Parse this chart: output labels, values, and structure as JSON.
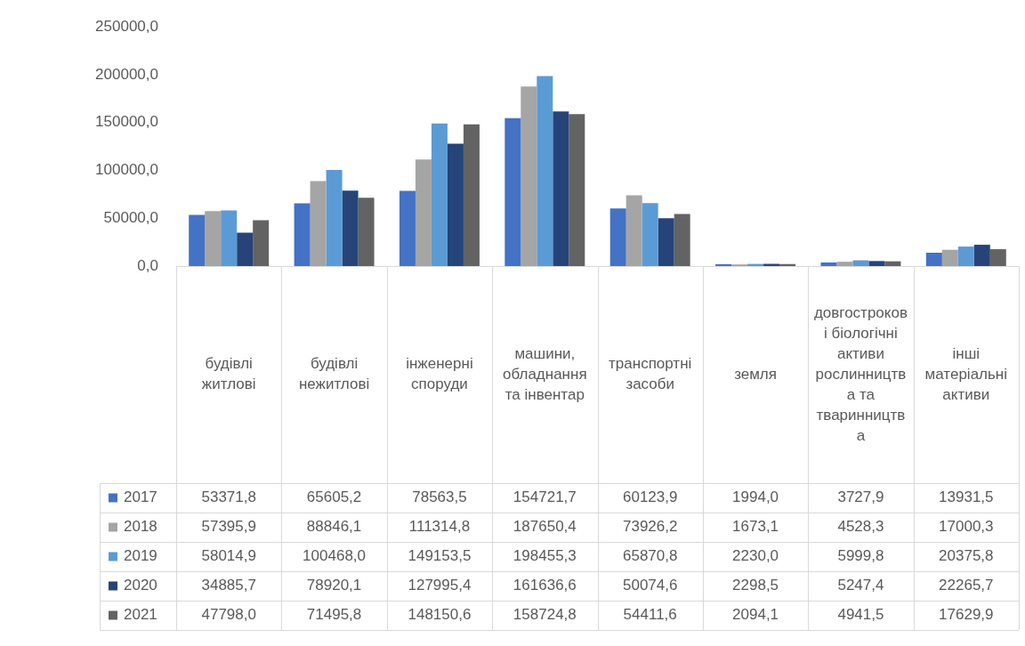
{
  "chart_data": {
    "type": "bar",
    "categories": [
      "будівлі житлові",
      "будівлі нежитлові",
      "інженерні споруди",
      "машини, обладнання та інвентар",
      "транспортні засоби",
      "земля",
      "довгострокові біологічні активи рослинництва та тваринництва",
      "інші матеріальні активи"
    ],
    "series": [
      {
        "name": "2017",
        "color": "#4472c4",
        "values": [
          53371.8,
          65605.2,
          78563.5,
          154721.7,
          60123.9,
          1994.0,
          3727.9,
          13931.5
        ],
        "value_labels": [
          "53371,8",
          "65605,2",
          "78563,5",
          "154721,7",
          "60123,9",
          "1994,0",
          "3727,9",
          "13931,5"
        ]
      },
      {
        "name": "2018",
        "color": "#a5a5a5",
        "values": [
          57395.9,
          88846.1,
          111314.8,
          187650.4,
          73926.2,
          1673.1,
          4528.3,
          17000.3
        ],
        "value_labels": [
          "57395,9",
          "88846,1",
          "111314,8",
          "187650,4",
          "73926,2",
          "1673,1",
          "4528,3",
          "17000,3"
        ]
      },
      {
        "name": "2019",
        "color": "#5b9bd5",
        "values": [
          58014.9,
          100468.0,
          149153.5,
          198455.3,
          65870.8,
          2230.0,
          5999.8,
          20375.8
        ],
        "value_labels": [
          "58014,9",
          "100468,0",
          "149153,5",
          "198455,3",
          "65870,8",
          "2230,0",
          "5999,8",
          "20375,8"
        ]
      },
      {
        "name": "2020",
        "color": "#264478",
        "values": [
          34885.7,
          78920.1,
          127995.4,
          161636.6,
          50074.6,
          2298.5,
          5247.4,
          22265.7
        ],
        "value_labels": [
          "34885,7",
          "78920,1",
          "127995,4",
          "161636,6",
          "50074,6",
          "2298,5",
          "5247,4",
          "22265,7"
        ]
      },
      {
        "name": "2021",
        "color": "#636363",
        "values": [
          47798.0,
          71495.8,
          148150.6,
          158724.8,
          54411.6,
          2094.1,
          4941.5,
          17629.9
        ],
        "value_labels": [
          "47798,0",
          "71495,8",
          "148150,6",
          "158724,8",
          "54411,6",
          "2094,1",
          "4941,5",
          "17629,9"
        ]
      }
    ],
    "ylim": [
      0,
      250000
    ],
    "yticks": [
      {
        "value": 0,
        "label": "0,0"
      },
      {
        "value": 50000,
        "label": "50000,0"
      },
      {
        "value": 100000,
        "label": "100000,0"
      },
      {
        "value": 150000,
        "label": "150000,0"
      },
      {
        "value": 200000,
        "label": "200000,0"
      },
      {
        "value": 250000,
        "label": "250000,0"
      }
    ],
    "grid": false,
    "legend": "bottom"
  }
}
